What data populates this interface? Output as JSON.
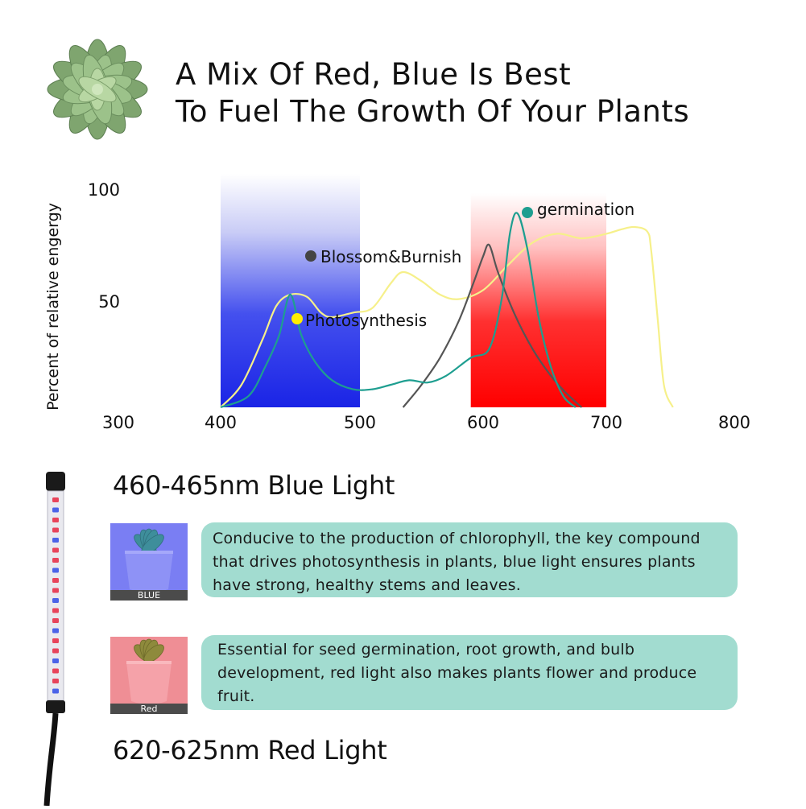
{
  "headline": {
    "line1": "A Mix Of Red, Blue Is Best",
    "line2": "To Fuel The Growth Of Your Plants"
  },
  "chart_data": {
    "type": "line",
    "ylabel": "Percent of relative engergy",
    "xlim": [
      300,
      800
    ],
    "ylim": [
      0,
      100
    ],
    "x_ticks": [
      "300",
      "400",
      "500",
      "600",
      "700",
      "800"
    ],
    "y_ticks": [
      "100",
      "50"
    ],
    "bands": [
      {
        "name": "blue",
        "from": 400,
        "to": 500,
        "color": "#2233ee"
      },
      {
        "name": "red",
        "from": 590,
        "to": 700,
        "color": "#ff1111"
      }
    ],
    "series": [
      {
        "name": "Photosynthesis",
        "color": "#f6f08a",
        "marker_color": "#ffee00",
        "points": [
          [
            400,
            0
          ],
          [
            415,
            10
          ],
          [
            430,
            30
          ],
          [
            440,
            45
          ],
          [
            450,
            50
          ],
          [
            462,
            49
          ],
          [
            472,
            42
          ],
          [
            480,
            40
          ],
          [
            495,
            42
          ],
          [
            510,
            44
          ],
          [
            525,
            55
          ],
          [
            535,
            60
          ],
          [
            550,
            56
          ],
          [
            565,
            50
          ],
          [
            580,
            48
          ],
          [
            600,
            52
          ],
          [
            620,
            63
          ],
          [
            640,
            73
          ],
          [
            660,
            77
          ],
          [
            680,
            75
          ],
          [
            700,
            77
          ],
          [
            712,
            79
          ],
          [
            722,
            80
          ],
          [
            732,
            78
          ],
          [
            735,
            70
          ],
          [
            740,
            40
          ],
          [
            745,
            10
          ],
          [
            752,
            0
          ]
        ]
      },
      {
        "name": "Blossom&Burnish",
        "color": "#555555",
        "marker_color": "#444444",
        "points": [
          [
            535,
            0
          ],
          [
            550,
            10
          ],
          [
            565,
            22
          ],
          [
            580,
            38
          ],
          [
            592,
            55
          ],
          [
            600,
            67
          ],
          [
            605,
            72
          ],
          [
            612,
            60
          ],
          [
            625,
            42
          ],
          [
            640,
            26
          ],
          [
            655,
            14
          ],
          [
            668,
            6
          ],
          [
            680,
            0
          ]
        ]
      },
      {
        "name": "germination",
        "color": "#1e9e90",
        "marker_color": "#1e9e90",
        "points": [
          [
            400,
            0
          ],
          [
            420,
            5
          ],
          [
            432,
            18
          ],
          [
            442,
            32
          ],
          [
            450,
            50
          ],
          [
            458,
            32
          ],
          [
            468,
            20
          ],
          [
            480,
            12
          ],
          [
            495,
            8
          ],
          [
            510,
            8
          ],
          [
            525,
            10
          ],
          [
            540,
            12
          ],
          [
            555,
            11
          ],
          [
            570,
            14
          ],
          [
            590,
            22
          ],
          [
            605,
            26
          ],
          [
            615,
            48
          ],
          [
            622,
            78
          ],
          [
            628,
            86
          ],
          [
            636,
            70
          ],
          [
            645,
            40
          ],
          [
            655,
            18
          ],
          [
            665,
            5
          ],
          [
            675,
            0
          ]
        ]
      }
    ],
    "grid": false,
    "legend": "inline"
  },
  "blue": {
    "title": "460-465nm Blue Light",
    "thumb_label": "BLUE",
    "text": "Conducive to the production of chlorophyll, the key compound that drives photosynthesis in plants, blue light ensures plants have strong, healthy stems and leaves."
  },
  "red": {
    "title": "620-625nm Red Light",
    "thumb_label": "Red",
    "text": "Essential for seed germination, root growth, and bulb development, red light  also makes plants flower and produce fruit."
  }
}
